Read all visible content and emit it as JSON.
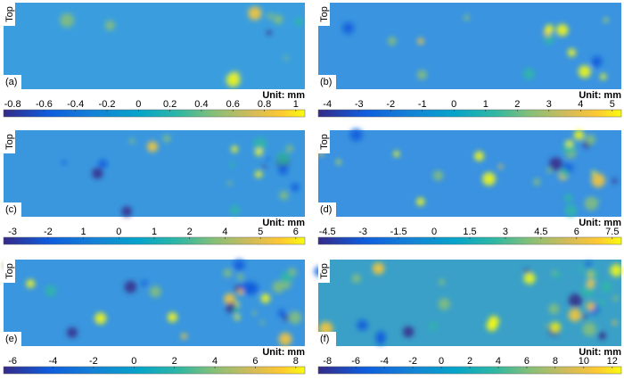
{
  "panels": [
    {
      "label": "(a)",
      "top": "Top",
      "unit": "Unit: mm",
      "ticks": [
        "-0.8",
        "-0.6",
        "-0.4",
        "-0.2",
        "0",
        "0.2",
        "0.4",
        "0.6",
        "0.8",
        "1"
      ]
    },
    {
      "label": "(b)",
      "top": "Top",
      "unit": "Unit: mm",
      "ticks": [
        "-4",
        "-3",
        "-2",
        "-1",
        "0",
        "1",
        "2",
        "3",
        "4",
        "5"
      ]
    },
    {
      "label": "(c)",
      "top": "Top",
      "unit": "Unit: mm",
      "ticks": [
        "-3",
        "-2",
        "1",
        "0",
        "1",
        "2",
        "4",
        "5",
        "6"
      ]
    },
    {
      "label": "(d)",
      "top": "Top",
      "unit": "Unit: mm",
      "ticks": [
        "-4.5",
        "-3",
        "-1.5",
        "0",
        "1.5",
        "3",
        "4.5",
        "6",
        "7.5"
      ]
    },
    {
      "label": "(e)",
      "top": "Top",
      "unit": "Unit: mm",
      "ticks": [
        "-6",
        "-4",
        "-2",
        "0",
        "2",
        "4",
        "6",
        "8"
      ]
    },
    {
      "label": "(f)",
      "top": "Top",
      "unit": "Unit: mm",
      "ticks": [
        "-8",
        "-6",
        "-4",
        "-2",
        "0",
        "2",
        "4",
        "6",
        "8",
        "10",
        "12"
      ]
    }
  ]
}
